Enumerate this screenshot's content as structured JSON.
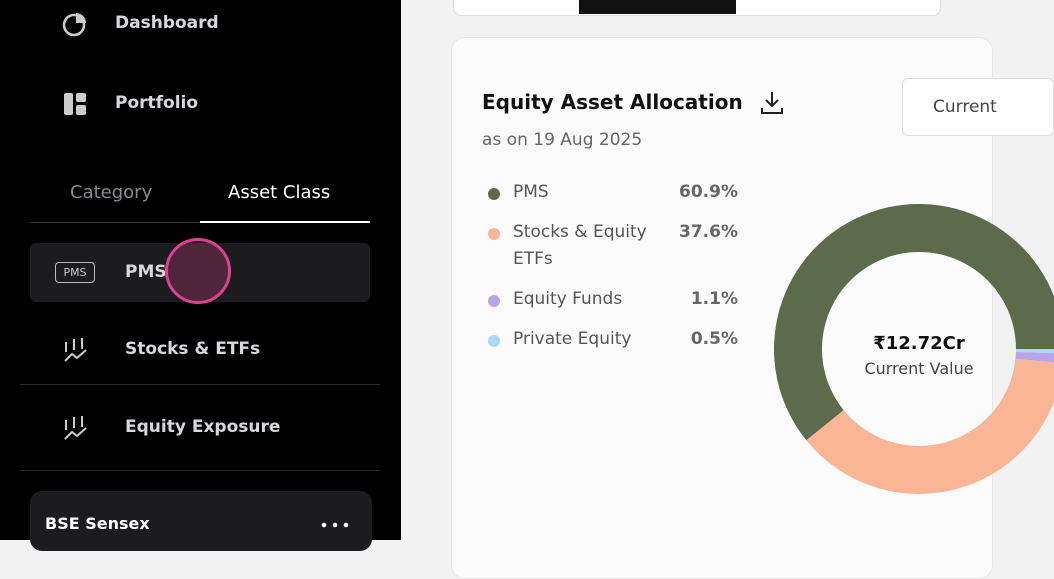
{
  "sidebar": {
    "nav": [
      "Dashboard",
      "Portfolio"
    ],
    "tabs": [
      "Category",
      "Asset Class"
    ],
    "items": [
      "PMS",
      "Stocks & ETFs",
      "Equity Exposure"
    ],
    "pms_badge": "PMS",
    "widget_title": "BSE Sensex"
  },
  "card": {
    "title": "Equity Asset Allocation",
    "subtitle": "as on 19 Aug 2025",
    "button": "Current",
    "center_value": "₹12.72Cr",
    "center_label": "Current Value",
    "allocation": {
      "type": "donut",
      "categories": [
        "PMS",
        "Stocks & Equity ETFs",
        "Equity Funds",
        "Private Equity"
      ],
      "values": [
        60.9,
        37.6,
        1.1,
        0.5
      ],
      "value_labels": [
        "60.9%",
        "37.6%",
        "1.1%",
        "0.5%"
      ],
      "colors": [
        "#5b6b4c",
        "#f9b596",
        "#b9a6e8",
        "#aed8f7"
      ]
    }
  }
}
